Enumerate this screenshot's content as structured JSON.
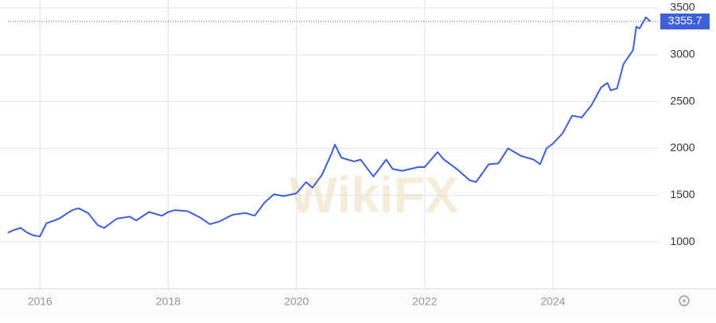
{
  "chart_data": {
    "type": "line",
    "watermark": "WikiFX",
    "x": [
      2015.5,
      2015.6,
      2015.7,
      2015.8,
      2015.9,
      2016.0,
      2016.1,
      2016.3,
      2016.5,
      2016.6,
      2016.75,
      2016.9,
      2017.0,
      2017.2,
      2017.4,
      2017.5,
      2017.7,
      2017.9,
      2018.0,
      2018.1,
      2018.3,
      2018.5,
      2018.65,
      2018.8,
      2019.0,
      2019.2,
      2019.35,
      2019.5,
      2019.65,
      2019.8,
      2020.0,
      2020.15,
      2020.25,
      2020.4,
      2020.55,
      2020.6,
      2020.7,
      2020.9,
      2021.0,
      2021.2,
      2021.4,
      2021.5,
      2021.65,
      2021.9,
      2022.0,
      2022.2,
      2022.3,
      2022.5,
      2022.7,
      2022.8,
      2023.0,
      2023.15,
      2023.3,
      2023.5,
      2023.7,
      2023.8,
      2023.9,
      2024.0,
      2024.15,
      2024.3,
      2024.45,
      2024.6,
      2024.75,
      2024.85,
      2024.9,
      2025.0,
      2025.1,
      2025.25,
      2025.3,
      2025.35,
      2025.45,
      2025.52
    ],
    "series": [
      {
        "color": "#3d5fd9",
        "values": [
          1100,
          1130,
          1150,
          1100,
          1070,
          1060,
          1200,
          1250,
          1340,
          1360,
          1310,
          1180,
          1150,
          1250,
          1270,
          1230,
          1320,
          1280,
          1320,
          1340,
          1330,
          1260,
          1190,
          1220,
          1290,
          1310,
          1280,
          1420,
          1510,
          1490,
          1520,
          1640,
          1580,
          1720,
          1950,
          2040,
          1900,
          1860,
          1880,
          1700,
          1880,
          1780,
          1760,
          1800,
          1800,
          1960,
          1880,
          1780,
          1660,
          1640,
          1830,
          1840,
          2000,
          1920,
          1880,
          1830,
          2000,
          2050,
          2160,
          2350,
          2330,
          2460,
          2650,
          2700,
          2620,
          2640,
          2900,
          3050,
          3300,
          3280,
          3400,
          3355.7
        ]
      }
    ],
    "xlim": [
      2015.5,
      2025.65
    ],
    "xticks": [
      2016,
      2018,
      2020,
      2022,
      2024
    ],
    "ylim": [
      500,
      3500
    ],
    "yticks": [
      1000,
      1500,
      2000,
      2500,
      3000,
      3500
    ],
    "grid": true
  }
}
